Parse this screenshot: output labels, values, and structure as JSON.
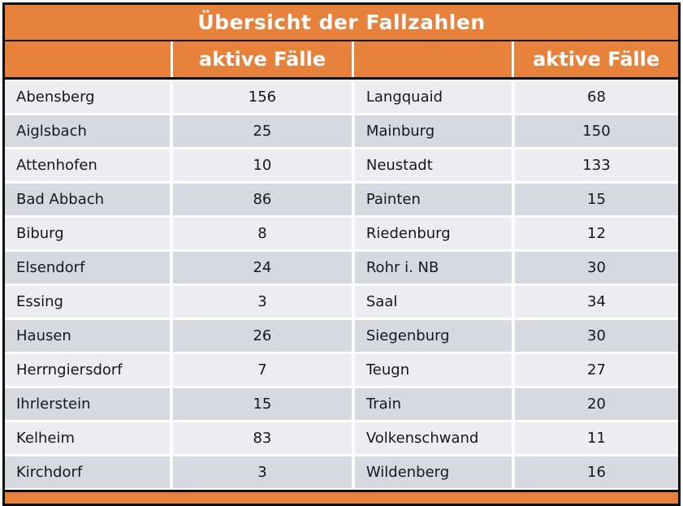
{
  "chart_data": {
    "type": "table",
    "title": "Übersicht der Fallzahlen",
    "header": [
      "",
      "aktive Fälle",
      "",
      "aktive Fälle"
    ],
    "rows": [
      [
        "Abensberg",
        "156",
        "Langquaid",
        "68"
      ],
      [
        "Aiglsbach",
        "25",
        "Mainburg",
        "150"
      ],
      [
        "Attenhofen",
        "10",
        "Neustadt",
        "133"
      ],
      [
        "Bad Abbach",
        "86",
        "Painten",
        "15"
      ],
      [
        "Biburg",
        "8",
        "Riedenburg",
        "12"
      ],
      [
        "Elsendorf",
        "24",
        "Rohr i. NB",
        "30"
      ],
      [
        "Essing",
        "3",
        "Saal",
        "34"
      ],
      [
        "Hausen",
        "26",
        "Siegenburg",
        "30"
      ],
      [
        "Herrngiersdorf",
        "7",
        "Teugn",
        "27"
      ],
      [
        "Ihrlerstein",
        "15",
        "Train",
        "20"
      ],
      [
        "Kelheim",
        "83",
        "Volkenschwand",
        "11"
      ],
      [
        "Kirchdorf",
        "3",
        "Wildenberg",
        "16"
      ]
    ]
  },
  "colors": {
    "accent_orange": "#e6823c",
    "row_light": "#ececf1",
    "row_dark": "#d8d8e0",
    "border_black": "#0b0b0b",
    "header_text": "#ffffff",
    "body_text": "#17171c"
  }
}
